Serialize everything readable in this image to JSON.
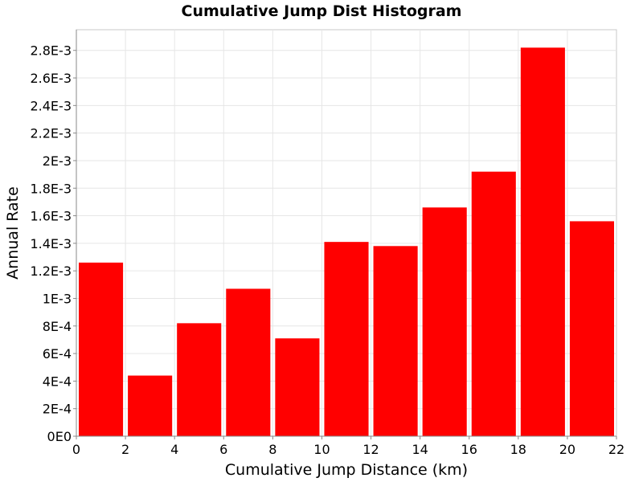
{
  "chart_data": {
    "type": "bar",
    "title": "Cumulative Jump Dist Histogram",
    "xlabel": "Cumulative Jump Distance (km)",
    "ylabel": "Annual Rate",
    "xlim": [
      0,
      22
    ],
    "ylim": [
      0,
      0.00295
    ],
    "bar_color": "#ff0000",
    "grid": true,
    "x_ticks": [
      {
        "value": 0,
        "label": "0"
      },
      {
        "value": 2,
        "label": "2"
      },
      {
        "value": 4,
        "label": "4"
      },
      {
        "value": 6,
        "label": "6"
      },
      {
        "value": 8,
        "label": "8"
      },
      {
        "value": 10,
        "label": "10"
      },
      {
        "value": 12,
        "label": "12"
      },
      {
        "value": 14,
        "label": "14"
      },
      {
        "value": 16,
        "label": "16"
      },
      {
        "value": 18,
        "label": "18"
      },
      {
        "value": 20,
        "label": "20"
      },
      {
        "value": 22,
        "label": "22"
      }
    ],
    "y_ticks": [
      {
        "value": 0,
        "label": "0E0"
      },
      {
        "value": 0.0002,
        "label": "2E-4"
      },
      {
        "value": 0.0004,
        "label": "4E-4"
      },
      {
        "value": 0.0006,
        "label": "6E-4"
      },
      {
        "value": 0.0008,
        "label": "8E-4"
      },
      {
        "value": 0.001,
        "label": "1E-3"
      },
      {
        "value": 0.0012,
        "label": "1.2E-3"
      },
      {
        "value": 0.0014,
        "label": "1.4E-3"
      },
      {
        "value": 0.0016,
        "label": "1.6E-3"
      },
      {
        "value": 0.0018,
        "label": "1.8E-3"
      },
      {
        "value": 0.002,
        "label": "2E-3"
      },
      {
        "value": 0.0022,
        "label": "2.2E-3"
      },
      {
        "value": 0.0024,
        "label": "2.4E-3"
      },
      {
        "value": 0.0026,
        "label": "2.6E-3"
      },
      {
        "value": 0.0028,
        "label": "2.8E-3"
      }
    ],
    "bars": [
      {
        "x_start": 0,
        "x_end": 2,
        "value": 0.00126
      },
      {
        "x_start": 2,
        "x_end": 4,
        "value": 0.00044
      },
      {
        "x_start": 4,
        "x_end": 6,
        "value": 0.00082
      },
      {
        "x_start": 6,
        "x_end": 8,
        "value": 0.00107
      },
      {
        "x_start": 8,
        "x_end": 10,
        "value": 0.00071
      },
      {
        "x_start": 10,
        "x_end": 12,
        "value": 0.00141
      },
      {
        "x_start": 12,
        "x_end": 14,
        "value": 0.00138
      },
      {
        "x_start": 14,
        "x_end": 16,
        "value": 0.00166
      },
      {
        "x_start": 16,
        "x_end": 18,
        "value": 0.00192
      },
      {
        "x_start": 18,
        "x_end": 20,
        "value": 0.00282
      },
      {
        "x_start": 20,
        "x_end": 22,
        "value": 0.00156
      }
    ]
  }
}
